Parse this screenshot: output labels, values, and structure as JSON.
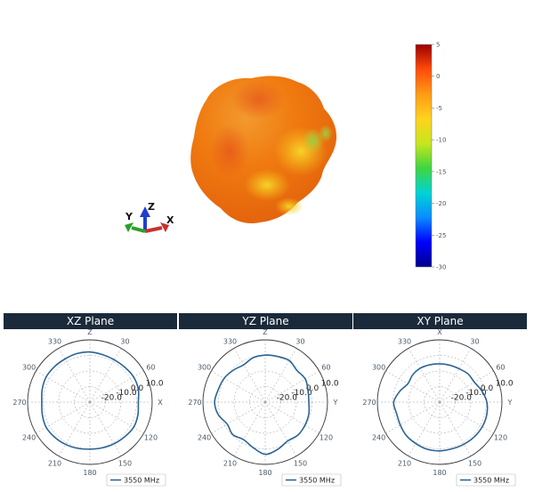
{
  "view3d": {
    "axis_labels": {
      "x": "X",
      "y": "Y",
      "z": "Z"
    },
    "colors": {
      "body": "#f07a10",
      "highlight": "#f5c518",
      "shadow": "#e55a10",
      "accent": "#9ed84a"
    }
  },
  "colorbar": {
    "ticks": [
      "5",
      "0",
      "-5",
      "-10",
      "-15",
      "-20",
      "-25",
      "-30"
    ],
    "range": [
      -30,
      5
    ],
    "colormap": [
      "#00008c",
      "#0000ff",
      "#0a8cff",
      "#00d4d4",
      "#3fd63f",
      "#c8e61e",
      "#ffd21e",
      "#ff9a14",
      "#ff4a0a",
      "#9b0000"
    ]
  },
  "chart_data": [
    {
      "type": "polar-line",
      "title": "XZ Plane",
      "angle_labels": [
        {
          "deg": 0,
          "text": "Z"
        },
        {
          "deg": 30,
          "text": "30"
        },
        {
          "deg": 60,
          "text": "60"
        },
        {
          "deg": 90,
          "text": "X"
        },
        {
          "deg": 120,
          "text": "120"
        },
        {
          "deg": 150,
          "text": "150"
        },
        {
          "deg": 180,
          "text": "180"
        },
        {
          "deg": 210,
          "text": "210"
        },
        {
          "deg": 240,
          "text": "240"
        },
        {
          "deg": 270,
          "text": "270"
        },
        {
          "deg": 300,
          "text": "300"
        },
        {
          "deg": 330,
          "text": "330"
        }
      ],
      "radial_ticks": [
        "-20.0",
        "-10.0",
        "0.0",
        "10.0"
      ],
      "rlim": [
        -30,
        10
      ],
      "series": [
        {
          "name": "3550 MHz",
          "color": "#2a6496",
          "theta": [
            0,
            15,
            30,
            45,
            60,
            75,
            90,
            105,
            120,
            135,
            150,
            165,
            180,
            195,
            210,
            225,
            240,
            255,
            270,
            285,
            300,
            315,
            330,
            345
          ],
          "r": [
            2.2,
            1.6,
            1.4,
            1.7,
            2.4,
            2.2,
            1.1,
            1.9,
            2.4,
            1.5,
            0.9,
            0.4,
            0.2,
            0.7,
            1.3,
            1.9,
            2.4,
            1.6,
            0.9,
            1.7,
            2.4,
            2.2,
            2.0,
            2.3
          ]
        }
      ]
    },
    {
      "type": "polar-line",
      "title": "YZ Plane",
      "angle_labels": [
        {
          "deg": 0,
          "text": "Z"
        },
        {
          "deg": 30,
          "text": "30"
        },
        {
          "deg": 60,
          "text": "60"
        },
        {
          "deg": 90,
          "text": "Y"
        },
        {
          "deg": 120,
          "text": "120"
        },
        {
          "deg": 150,
          "text": "150"
        },
        {
          "deg": 180,
          "text": "180"
        },
        {
          "deg": 210,
          "text": "210"
        },
        {
          "deg": 240,
          "text": "240"
        },
        {
          "deg": 270,
          "text": "270"
        },
        {
          "deg": 300,
          "text": "300"
        },
        {
          "deg": 330,
          "text": "330"
        }
      ],
      "radial_ticks": [
        "-20.0",
        "-10.0",
        "0.0",
        "10.0"
      ],
      "rlim": [
        -30,
        10
      ],
      "series": [
        {
          "name": "3550 MHz",
          "color": "#2a6496",
          "theta": [
            0,
            15,
            30,
            45,
            60,
            75,
            90,
            105,
            120,
            135,
            150,
            165,
            180,
            195,
            210,
            225,
            240,
            255,
            270,
            285,
            300,
            315,
            330,
            345
          ],
          "r": [
            0.2,
            0.4,
            0.9,
            -1.2,
            -0.3,
            -1.5,
            -2.0,
            -1.0,
            -0.5,
            -0.2,
            -1.2,
            1.3,
            3.5,
            0.2,
            -2.2,
            -0.5,
            -1.8,
            1.2,
            2.5,
            1.2,
            0.5,
            -1.0,
            -2.3,
            -0.4
          ]
        }
      ]
    },
    {
      "type": "polar-line",
      "title": "XY Plane",
      "angle_labels": [
        {
          "deg": 0,
          "text": "X"
        },
        {
          "deg": 30,
          "text": "30"
        },
        {
          "deg": 60,
          "text": "60"
        },
        {
          "deg": 90,
          "text": "Y"
        },
        {
          "deg": 120,
          "text": "120"
        },
        {
          "deg": 150,
          "text": "150"
        },
        {
          "deg": 180,
          "text": "180"
        },
        {
          "deg": 210,
          "text": "210"
        },
        {
          "deg": 240,
          "text": "240"
        },
        {
          "deg": 270,
          "text": "270"
        },
        {
          "deg": 300,
          "text": "300"
        },
        {
          "deg": 330,
          "text": "330"
        }
      ],
      "radial_ticks": [
        "-20.0",
        "-10.0",
        "0.0",
        "10.0"
      ],
      "rlim": [
        -30,
        10
      ],
      "series": [
        {
          "name": "3550 MHz",
          "color": "#2a6496",
          "theta": [
            0,
            15,
            30,
            45,
            60,
            75,
            90,
            105,
            120,
            135,
            150,
            165,
            180,
            195,
            210,
            225,
            240,
            255,
            270,
            285,
            300,
            315,
            330,
            345
          ],
          "r": [
            -5.4,
            -5.4,
            -5.2,
            -4.3,
            -4.3,
            -2.0,
            0.3,
            1.3,
            1.6,
            1.5,
            1.2,
            1.0,
            1.3,
            1.3,
            0.7,
            0.3,
            -0.8,
            -1.4,
            -0.5,
            -3.4,
            -6.4,
            -5.4,
            -4.9,
            -5.2
          ]
        }
      ]
    }
  ]
}
